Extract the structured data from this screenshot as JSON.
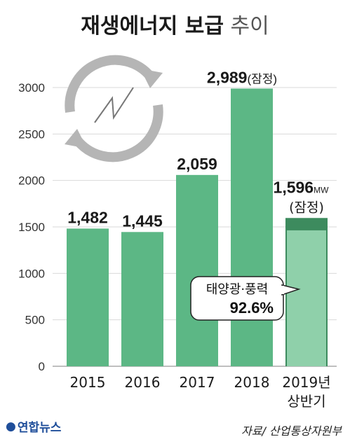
{
  "title": {
    "main": "재생에너지 보급",
    "sub": "추이"
  },
  "chart_data": {
    "type": "bar",
    "categories": [
      "2015",
      "2016",
      "2017",
      "2018",
      "2019년"
    ],
    "category_second_line": [
      "",
      "",
      "",
      "",
      "상반기"
    ],
    "values": [
      1482,
      1445,
      2059,
      2989,
      1596
    ],
    "value_labels": [
      "1,482",
      "1,445",
      "2,059",
      "2,989",
      "1,596"
    ],
    "value_suffix": [
      "",
      "",
      "",
      "(잠정)",
      "MW"
    ],
    "value_note": [
      "",
      "",
      "",
      "",
      "(잠정)"
    ],
    "yticks": [
      0,
      500,
      1000,
      1500,
      2000,
      2500,
      3000
    ],
    "ylim": [
      0,
      3000
    ],
    "highlight": {
      "index": 4,
      "value": 1478,
      "label": "태양광·풍력",
      "percent": "92.6%"
    },
    "colors": {
      "bar": "#5cb785",
      "highlight": "#3d8b5e",
      "grid": "#d9d9d9",
      "text": "#1a1a1a"
    }
  },
  "icon": "recycle-energy-icon",
  "footer": {
    "logo_text": "연합뉴스",
    "source": "자료/ 산업통상자원부"
  }
}
